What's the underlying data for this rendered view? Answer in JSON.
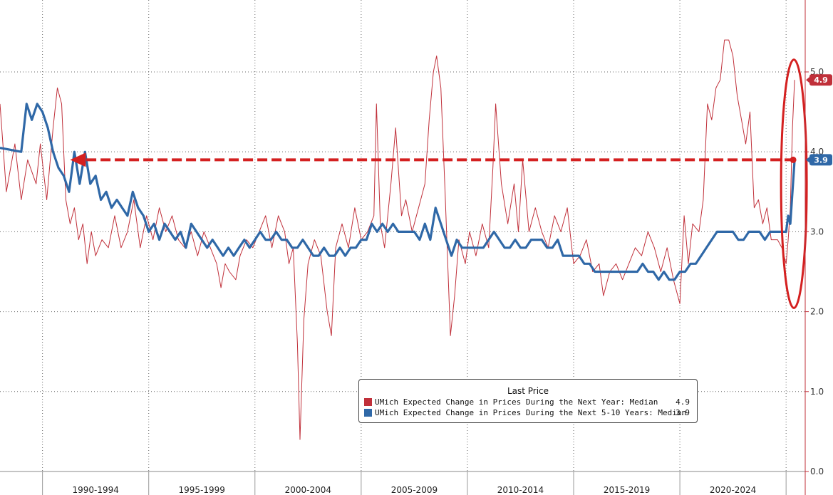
{
  "chart_data": {
    "type": "line",
    "title": "",
    "xlabel": "",
    "ylabel": "",
    "ylim": [
      0,
      5.9
    ],
    "y_ticks": [
      "0.0",
      "1.0",
      "2.0",
      "3.0",
      "4.0",
      "5.0"
    ],
    "x_ticks": [
      "1990-1994",
      "1995-1999",
      "2000-2004",
      "2005-2009",
      "2010-2014",
      "2015-2019",
      "2020-2024"
    ],
    "grid": true,
    "legend_position": "bottom-center",
    "legend_title": "Last Price",
    "series": [
      {
        "name": "UMich Expected Change in Prices During the Next Year: Median",
        "last_value": "4.9",
        "color": "#c0303a",
        "points": [
          [
            1988.0,
            4.6
          ],
          [
            1988.3,
            3.5
          ],
          [
            1988.7,
            4.1
          ],
          [
            1989.0,
            3.4
          ],
          [
            1989.3,
            3.9
          ],
          [
            1989.7,
            3.6
          ],
          [
            1989.9,
            4.1
          ],
          [
            1990.2,
            3.4
          ],
          [
            1990.5,
            4.3
          ],
          [
            1990.7,
            4.8
          ],
          [
            1990.9,
            4.6
          ],
          [
            1991.1,
            3.4
          ],
          [
            1991.3,
            3.1
          ],
          [
            1991.5,
            3.3
          ],
          [
            1991.7,
            2.9
          ],
          [
            1991.9,
            3.1
          ],
          [
            1992.1,
            2.6
          ],
          [
            1992.3,
            3.0
          ],
          [
            1992.5,
            2.7
          ],
          [
            1992.8,
            2.9
          ],
          [
            1993.1,
            2.8
          ],
          [
            1993.4,
            3.2
          ],
          [
            1993.7,
            2.8
          ],
          [
            1994.0,
            3.0
          ],
          [
            1994.3,
            3.4
          ],
          [
            1994.6,
            2.8
          ],
          [
            1994.9,
            3.2
          ],
          [
            1995.2,
            2.9
          ],
          [
            1995.5,
            3.3
          ],
          [
            1995.8,
            3.0
          ],
          [
            1996.1,
            3.2
          ],
          [
            1996.4,
            2.9
          ],
          [
            1996.7,
            2.8
          ],
          [
            1997.0,
            3.0
          ],
          [
            1997.3,
            2.7
          ],
          [
            1997.6,
            3.0
          ],
          [
            1997.9,
            2.8
          ],
          [
            1998.2,
            2.6
          ],
          [
            1998.4,
            2.3
          ],
          [
            1998.6,
            2.6
          ],
          [
            1998.8,
            2.5
          ],
          [
            1999.1,
            2.4
          ],
          [
            1999.3,
            2.7
          ],
          [
            1999.6,
            2.9
          ],
          [
            1999.9,
            2.8
          ],
          [
            2000.2,
            3.0
          ],
          [
            2000.5,
            3.2
          ],
          [
            2000.8,
            2.8
          ],
          [
            2001.1,
            3.2
          ],
          [
            2001.4,
            3.0
          ],
          [
            2001.6,
            2.6
          ],
          [
            2001.8,
            2.8
          ],
          [
            2002.0,
            1.6
          ],
          [
            2002.12,
            0.4
          ],
          [
            2002.3,
            1.9
          ],
          [
            2002.5,
            2.6
          ],
          [
            2002.8,
            2.9
          ],
          [
            2003.1,
            2.7
          ],
          [
            2003.4,
            2.0
          ],
          [
            2003.6,
            1.7
          ],
          [
            2003.8,
            2.8
          ],
          [
            2004.1,
            3.1
          ],
          [
            2004.4,
            2.8
          ],
          [
            2004.7,
            3.3
          ],
          [
            2005.0,
            2.9
          ],
          [
            2005.3,
            3.0
          ],
          [
            2005.6,
            3.2
          ],
          [
            2005.72,
            4.6
          ],
          [
            2005.9,
            3.1
          ],
          [
            2006.1,
            2.8
          ],
          [
            2006.4,
            3.6
          ],
          [
            2006.62,
            4.3
          ],
          [
            2006.9,
            3.2
          ],
          [
            2007.1,
            3.4
          ],
          [
            2007.4,
            3.0
          ],
          [
            2007.7,
            3.3
          ],
          [
            2008.0,
            3.6
          ],
          [
            2008.2,
            4.4
          ],
          [
            2008.4,
            5.0
          ],
          [
            2008.55,
            5.2
          ],
          [
            2008.75,
            4.8
          ],
          [
            2008.95,
            3.5
          ],
          [
            2009.2,
            1.7
          ],
          [
            2009.4,
            2.2
          ],
          [
            2009.6,
            2.9
          ],
          [
            2009.9,
            2.6
          ],
          [
            2010.1,
            3.0
          ],
          [
            2010.4,
            2.7
          ],
          [
            2010.7,
            3.1
          ],
          [
            2011.0,
            2.8
          ],
          [
            2011.2,
            3.8
          ],
          [
            2011.33,
            4.6
          ],
          [
            2011.6,
            3.6
          ],
          [
            2011.9,
            3.1
          ],
          [
            2012.2,
            3.6
          ],
          [
            2012.4,
            3.0
          ],
          [
            2012.6,
            3.9
          ],
          [
            2012.9,
            3.0
          ],
          [
            2013.2,
            3.3
          ],
          [
            2013.5,
            3.0
          ],
          [
            2013.8,
            2.8
          ],
          [
            2014.1,
            3.2
          ],
          [
            2014.4,
            3.0
          ],
          [
            2014.7,
            3.3
          ],
          [
            2015.0,
            2.6
          ],
          [
            2015.3,
            2.7
          ],
          [
            2015.6,
            2.9
          ],
          [
            2015.9,
            2.5
          ],
          [
            2016.2,
            2.6
          ],
          [
            2016.4,
            2.2
          ],
          [
            2016.7,
            2.5
          ],
          [
            2017.0,
            2.6
          ],
          [
            2017.3,
            2.4
          ],
          [
            2017.6,
            2.6
          ],
          [
            2017.9,
            2.8
          ],
          [
            2018.2,
            2.7
          ],
          [
            2018.5,
            3.0
          ],
          [
            2018.8,
            2.8
          ],
          [
            2019.1,
            2.5
          ],
          [
            2019.4,
            2.8
          ],
          [
            2019.7,
            2.4
          ],
          [
            2020.0,
            2.1
          ],
          [
            2020.2,
            3.2
          ],
          [
            2020.4,
            2.6
          ],
          [
            2020.6,
            3.1
          ],
          [
            2020.9,
            3.0
          ],
          [
            2021.1,
            3.4
          ],
          [
            2021.3,
            4.6
          ],
          [
            2021.5,
            4.4
          ],
          [
            2021.7,
            4.8
          ],
          [
            2021.9,
            4.9
          ],
          [
            2022.1,
            5.4
          ],
          [
            2022.3,
            5.4
          ],
          [
            2022.5,
            5.2
          ],
          [
            2022.7,
            4.7
          ],
          [
            2022.9,
            4.4
          ],
          [
            2023.1,
            4.1
          ],
          [
            2023.3,
            4.5
          ],
          [
            2023.5,
            3.3
          ],
          [
            2023.7,
            3.4
          ],
          [
            2023.9,
            3.1
          ],
          [
            2024.1,
            3.3
          ],
          [
            2024.3,
            2.9
          ],
          [
            2024.6,
            2.9
          ],
          [
            2024.8,
            2.8
          ],
          [
            2025.0,
            2.6
          ],
          [
            2025.1,
            2.9
          ],
          [
            2025.2,
            3.3
          ],
          [
            2025.3,
            4.3
          ],
          [
            2025.4,
            4.9
          ]
        ]
      },
      {
        "name": "UMich Expected Change in Prices During the Next 5-10 Years: Median",
        "last_value": "3.9",
        "color": "#2f68a7",
        "points": [
          [
            1988.0,
            4.05
          ],
          [
            1989.0,
            4.0
          ],
          [
            1989.25,
            4.6
          ],
          [
            1989.5,
            4.4
          ],
          [
            1989.75,
            4.6
          ],
          [
            1990.0,
            4.5
          ],
          [
            1990.25,
            4.3
          ],
          [
            1990.5,
            4.0
          ],
          [
            1990.75,
            3.8
          ],
          [
            1991.0,
            3.7
          ],
          [
            1991.25,
            3.5
          ],
          [
            1991.5,
            4.0
          ],
          [
            1991.75,
            3.6
          ],
          [
            1992.0,
            4.0
          ],
          [
            1992.25,
            3.6
          ],
          [
            1992.5,
            3.7
          ],
          [
            1992.75,
            3.4
          ],
          [
            1993.0,
            3.5
          ],
          [
            1993.25,
            3.3
          ],
          [
            1993.5,
            3.4
          ],
          [
            1993.75,
            3.3
          ],
          [
            1994.0,
            3.2
          ],
          [
            1994.25,
            3.5
          ],
          [
            1994.5,
            3.3
          ],
          [
            1994.75,
            3.2
          ],
          [
            1995.0,
            3.0
          ],
          [
            1995.25,
            3.1
          ],
          [
            1995.5,
            2.9
          ],
          [
            1995.75,
            3.1
          ],
          [
            1996.0,
            3.0
          ],
          [
            1996.25,
            2.9
          ],
          [
            1996.5,
            3.0
          ],
          [
            1996.75,
            2.8
          ],
          [
            1997.0,
            3.1
          ],
          [
            1997.25,
            3.0
          ],
          [
            1997.5,
            2.9
          ],
          [
            1997.75,
            2.8
          ],
          [
            1998.0,
            2.9
          ],
          [
            1998.25,
            2.8
          ],
          [
            1998.5,
            2.7
          ],
          [
            1998.75,
            2.8
          ],
          [
            1999.0,
            2.7
          ],
          [
            1999.25,
            2.8
          ],
          [
            1999.5,
            2.9
          ],
          [
            1999.75,
            2.8
          ],
          [
            2000.0,
            2.9
          ],
          [
            2000.25,
            3.0
          ],
          [
            2000.5,
            2.9
          ],
          [
            2000.75,
            2.9
          ],
          [
            2001.0,
            3.0
          ],
          [
            2001.25,
            2.9
          ],
          [
            2001.5,
            2.9
          ],
          [
            2001.75,
            2.8
          ],
          [
            2002.0,
            2.8
          ],
          [
            2002.25,
            2.9
          ],
          [
            2002.5,
            2.8
          ],
          [
            2002.75,
            2.7
          ],
          [
            2003.0,
            2.7
          ],
          [
            2003.25,
            2.8
          ],
          [
            2003.5,
            2.7
          ],
          [
            2003.75,
            2.7
          ],
          [
            2004.0,
            2.8
          ],
          [
            2004.25,
            2.7
          ],
          [
            2004.5,
            2.8
          ],
          [
            2004.75,
            2.8
          ],
          [
            2005.0,
            2.9
          ],
          [
            2005.25,
            2.9
          ],
          [
            2005.5,
            3.1
          ],
          [
            2005.75,
            3.0
          ],
          [
            2006.0,
            3.1
          ],
          [
            2006.25,
            3.0
          ],
          [
            2006.5,
            3.1
          ],
          [
            2006.75,
            3.0
          ],
          [
            2007.0,
            3.0
          ],
          [
            2007.25,
            3.0
          ],
          [
            2007.5,
            3.0
          ],
          [
            2007.75,
            2.9
          ],
          [
            2008.0,
            3.1
          ],
          [
            2008.25,
            2.9
          ],
          [
            2008.5,
            3.3
          ],
          [
            2008.75,
            3.1
          ],
          [
            2009.0,
            2.9
          ],
          [
            2009.25,
            2.7
          ],
          [
            2009.5,
            2.9
          ],
          [
            2009.75,
            2.8
          ],
          [
            2010.0,
            2.8
          ],
          [
            2010.25,
            2.8
          ],
          [
            2010.5,
            2.8
          ],
          [
            2010.75,
            2.8
          ],
          [
            2011.0,
            2.9
          ],
          [
            2011.25,
            3.0
          ],
          [
            2011.5,
            2.9
          ],
          [
            2011.75,
            2.8
          ],
          [
            2012.0,
            2.8
          ],
          [
            2012.25,
            2.9
          ],
          [
            2012.5,
            2.8
          ],
          [
            2012.75,
            2.8
          ],
          [
            2013.0,
            2.9
          ],
          [
            2013.25,
            2.9
          ],
          [
            2013.5,
            2.9
          ],
          [
            2013.75,
            2.8
          ],
          [
            2014.0,
            2.8
          ],
          [
            2014.25,
            2.9
          ],
          [
            2014.5,
            2.7
          ],
          [
            2014.75,
            2.7
          ],
          [
            2015.0,
            2.7
          ],
          [
            2015.25,
            2.7
          ],
          [
            2015.5,
            2.6
          ],
          [
            2015.75,
            2.6
          ],
          [
            2016.0,
            2.5
          ],
          [
            2016.25,
            2.5
          ],
          [
            2016.5,
            2.5
          ],
          [
            2016.75,
            2.5
          ],
          [
            2017.0,
            2.5
          ],
          [
            2017.25,
            2.5
          ],
          [
            2017.5,
            2.5
          ],
          [
            2017.75,
            2.5
          ],
          [
            2018.0,
            2.5
          ],
          [
            2018.25,
            2.6
          ],
          [
            2018.5,
            2.5
          ],
          [
            2018.75,
            2.5
          ],
          [
            2019.0,
            2.4
          ],
          [
            2019.25,
            2.5
          ],
          [
            2019.5,
            2.4
          ],
          [
            2019.75,
            2.4
          ],
          [
            2020.0,
            2.5
          ],
          [
            2020.25,
            2.5
          ],
          [
            2020.5,
            2.6
          ],
          [
            2020.75,
            2.6
          ],
          [
            2021.0,
            2.7
          ],
          [
            2021.25,
            2.8
          ],
          [
            2021.5,
            2.9
          ],
          [
            2021.75,
            3.0
          ],
          [
            2022.0,
            3.0
          ],
          [
            2022.25,
            3.0
          ],
          [
            2022.5,
            3.0
          ],
          [
            2022.75,
            2.9
          ],
          [
            2023.0,
            2.9
          ],
          [
            2023.25,
            3.0
          ],
          [
            2023.5,
            3.0
          ],
          [
            2023.75,
            3.0
          ],
          [
            2024.0,
            2.9
          ],
          [
            2024.25,
            3.0
          ],
          [
            2024.5,
            3.0
          ],
          [
            2024.75,
            3.0
          ],
          [
            2025.0,
            3.0
          ],
          [
            2025.1,
            3.2
          ],
          [
            2025.2,
            3.1
          ],
          [
            2025.3,
            3.5
          ],
          [
            2025.4,
            3.9
          ]
        ]
      }
    ],
    "annotations": [
      {
        "type": "dashed-arrow",
        "from_year": 2025.4,
        "to_year": 1991.3,
        "value": 3.9,
        "color": "#d42020"
      },
      {
        "type": "ellipse",
        "around_year": 2025.3,
        "value_range": [
          2.1,
          5.1
        ],
        "color": "#d42020"
      }
    ]
  }
}
